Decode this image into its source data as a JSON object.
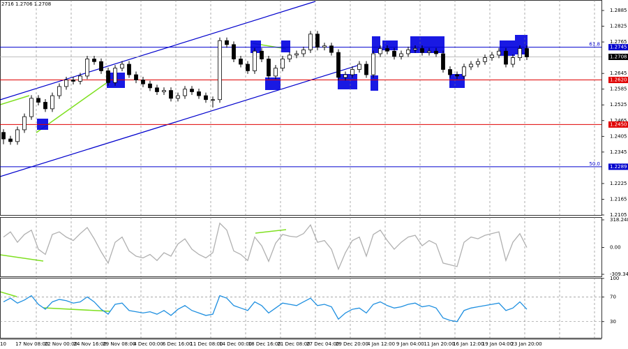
{
  "chart_data": [
    {
      "type": "candlestick",
      "title": "2716 1.2706 1.2708",
      "open": [
        1.242,
        1.2395,
        1.2385,
        1.243,
        1.248,
        1.255,
        1.2535,
        1.251,
        1.256,
        1.2595,
        1.262,
        1.2615,
        1.2635,
        1.27,
        1.269,
        1.2655,
        1.261,
        1.2665,
        1.268,
        1.264,
        1.262,
        1.2605,
        1.259,
        1.2575,
        1.258,
        1.255,
        1.256,
        1.2585,
        1.2575,
        1.256,
        1.2545,
        1.2545,
        1.277,
        1.2755,
        1.27,
        1.268,
        1.2655,
        1.273,
        1.27,
        1.2635,
        1.2665,
        1.27,
        1.2715,
        1.272,
        1.2735,
        1.2795,
        1.2745,
        1.275,
        1.2725,
        1.263,
        1.264,
        1.266,
        1.268,
        1.264,
        1.272,
        1.274,
        1.273,
        1.271,
        1.272,
        1.2735,
        1.274,
        1.2725,
        1.273,
        1.272,
        1.266,
        1.264,
        1.2635,
        1.267,
        1.268,
        1.269,
        1.2705,
        1.2715,
        1.273,
        1.268,
        1.2705,
        1.274
      ],
      "high": [
        1.2432,
        1.2407,
        1.2442,
        1.2492,
        1.2562,
        1.2562,
        1.2547,
        1.2572,
        1.2607,
        1.2632,
        1.2632,
        1.2647,
        1.2712,
        1.2712,
        1.2702,
        1.2667,
        1.2677,
        1.2692,
        1.2692,
        1.2652,
        1.2632,
        1.2617,
        1.2602,
        1.2592,
        1.2592,
        1.2572,
        1.2597,
        1.2597,
        1.2587,
        1.2572,
        1.2557,
        1.2782,
        1.2782,
        1.2767,
        1.2712,
        1.2692,
        1.2742,
        1.2742,
        1.2712,
        1.2677,
        1.2712,
        1.2727,
        1.2732,
        1.2747,
        1.2807,
        1.2807,
        1.2762,
        1.2762,
        1.2737,
        1.2652,
        1.2672,
        1.2692,
        1.2692,
        1.2732,
        1.2752,
        1.2752,
        1.2742,
        1.2732,
        1.2747,
        1.2752,
        1.2752,
        1.2742,
        1.2742,
        1.2732,
        1.2672,
        1.2652,
        1.2682,
        1.2692,
        1.2702,
        1.2717,
        1.2727,
        1.2742,
        1.2742,
        1.2717,
        1.2752,
        1.2752
      ],
      "low": [
        1.2375,
        1.2373,
        1.2373,
        1.2418,
        1.2468,
        1.2523,
        1.2498,
        1.2498,
        1.2548,
        1.2583,
        1.2603,
        1.2603,
        1.2623,
        1.2678,
        1.2643,
        1.2598,
        1.2598,
        1.2653,
        1.2628,
        1.2608,
        1.2593,
        1.2578,
        1.2563,
        1.2563,
        1.2538,
        1.2538,
        1.2548,
        1.2563,
        1.2548,
        1.2533,
        1.2515,
        1.2533,
        1.2743,
        1.2688,
        1.2668,
        1.2643,
        1.2643,
        1.2688,
        1.2623,
        1.2623,
        1.2653,
        1.2688,
        1.2703,
        1.2708,
        1.2723,
        1.2733,
        1.2733,
        1.2713,
        1.2618,
        1.2618,
        1.2628,
        1.2648,
        1.2628,
        1.2628,
        1.2708,
        1.2718,
        1.2698,
        1.2698,
        1.2708,
        1.2723,
        1.2713,
        1.2713,
        1.2708,
        1.2648,
        1.2628,
        1.2623,
        1.2623,
        1.2658,
        1.2668,
        1.2678,
        1.2693,
        1.2703,
        1.2668,
        1.2668,
        1.2693,
        1.2696
      ],
      "close": [
        1.2395,
        1.2385,
        1.243,
        1.248,
        1.255,
        1.2535,
        1.251,
        1.256,
        1.2595,
        1.262,
        1.2615,
        1.2635,
        1.27,
        1.269,
        1.2655,
        1.261,
        1.2665,
        1.268,
        1.264,
        1.262,
        1.2605,
        1.259,
        1.2575,
        1.258,
        1.255,
        1.256,
        1.2585,
        1.2575,
        1.256,
        1.2545,
        1.2545,
        1.277,
        1.2755,
        1.27,
        1.268,
        1.2655,
        1.273,
        1.27,
        1.2635,
        1.2665,
        1.27,
        1.2715,
        1.272,
        1.2735,
        1.2795,
        1.2745,
        1.275,
        1.2725,
        1.263,
        1.264,
        1.266,
        1.268,
        1.264,
        1.272,
        1.274,
        1.273,
        1.271,
        1.272,
        1.2735,
        1.274,
        1.2725,
        1.273,
        1.272,
        1.266,
        1.264,
        1.2635,
        1.267,
        1.268,
        1.269,
        1.2705,
        1.2715,
        1.273,
        1.268,
        1.2705,
        1.274,
        1.2708
      ],
      "ylim": [
        1.2105,
        1.2925
      ],
      "yticks": [
        1.2885,
        1.2825,
        1.2765,
        1.2645,
        1.2585,
        1.2525,
        1.2465,
        1.2405,
        1.2345,
        1.2225,
        1.2165,
        1.2105
      ],
      "levels": [
        {
          "value": 1.2745,
          "name": "61.8",
          "color": "#0000cd"
        },
        {
          "value": 1.262,
          "label": "1.2620",
          "color": "#e00000"
        },
        {
          "value": 1.245,
          "label": "1.2450",
          "color": "#e00000"
        },
        {
          "value": 1.2289,
          "name": "50.0",
          "color": "#0000cd"
        }
      ],
      "last_price": 1.2708,
      "time_labels": [
        "10",
        "17 Nov 08:00",
        "22 Nov 00:00",
        "24 Nov 16:00",
        "29 Nov 08:00",
        "4 Dec 00:00",
        "6 Dec 16:00",
        "11 Dec 08:00",
        "14 Dec 00:00",
        "18 Dec 16:00",
        "21 Dec 08:00",
        "27 Dec 04:00",
        "29 Dec 20:00",
        "4 Jan 12:00",
        "9 Jan 04:00",
        "11 Jan 20:00",
        "16 Jan 12:00",
        "19 Jan 04:00",
        "23 Jan 20:00"
      ]
    },
    {
      "type": "line",
      "color": "#b0b0b0",
      "values": [
        120,
        180,
        60,
        150,
        200,
        -20,
        -80,
        150,
        180,
        120,
        80,
        160,
        230,
        100,
        -50,
        -180,
        60,
        120,
        -40,
        -100,
        -120,
        -80,
        -150,
        -60,
        -100,
        40,
        100,
        -20,
        -80,
        -120,
        -60,
        280,
        200,
        -40,
        -80,
        -150,
        120,
        20,
        -160,
        50,
        150,
        130,
        120,
        160,
        260,
        60,
        80,
        -20,
        -250,
        -60,
        80,
        120,
        -100,
        150,
        200,
        80,
        -20,
        60,
        120,
        140,
        20,
        80,
        40,
        -180,
        -200,
        -220,
        60,
        120,
        100,
        140,
        160,
        180,
        -150,
        60,
        160,
        0
      ],
      "ylim": [
        -333.5,
        350.4
      ],
      "yticks": [
        318.248,
        {
          "value": 0,
          "label": "0.00"
        },
        -309.347
      ]
    },
    {
      "type": "line",
      "color": "#1e8fe0",
      "values": [
        62,
        68,
        60,
        65,
        72,
        58,
        50,
        62,
        66,
        64,
        60,
        62,
        70,
        62,
        50,
        42,
        58,
        60,
        48,
        46,
        44,
        46,
        42,
        48,
        40,
        50,
        56,
        48,
        44,
        40,
        42,
        72,
        68,
        56,
        52,
        48,
        62,
        56,
        44,
        52,
        60,
        58,
        56,
        62,
        68,
        56,
        58,
        54,
        34,
        44,
        50,
        52,
        44,
        58,
        62,
        56,
        52,
        54,
        58,
        60,
        54,
        56,
        52,
        36,
        32,
        30,
        48,
        52,
        54,
        56,
        58,
        60,
        48,
        52,
        62,
        50
      ],
      "ylim": [
        3.7,
        101
      ],
      "yticks": [
        100,
        70,
        30
      ]
    }
  ]
}
